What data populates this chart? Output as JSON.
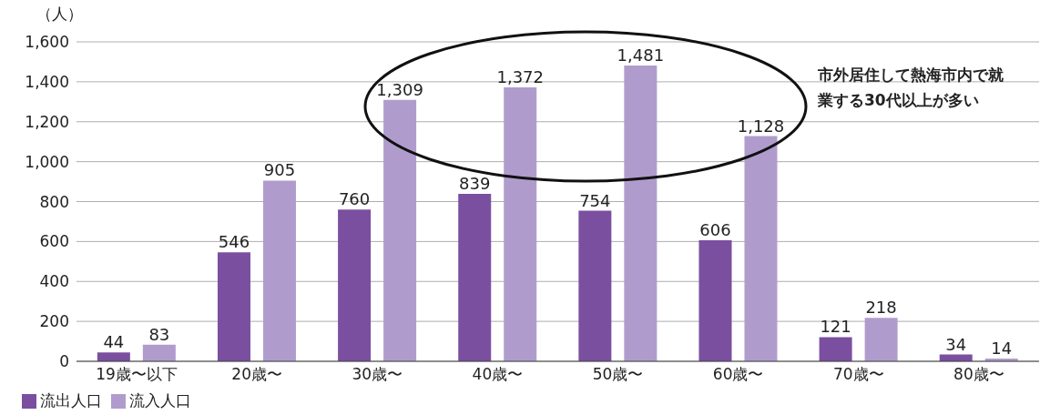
{
  "chart_data": {
    "type": "bar",
    "ylabel": "（人）",
    "categories": [
      "19歳〜以下",
      "20歳〜",
      "30歳〜",
      "40歳〜",
      "50歳〜",
      "60歳〜",
      "70歳〜",
      "80歳〜"
    ],
    "series": [
      {
        "name": "流出人口",
        "color": "#7b4fa0",
        "values": [
          44,
          546,
          760,
          839,
          754,
          606,
          121,
          34
        ],
        "value_labels": [
          "44",
          "546",
          "760",
          "839",
          "754",
          "606",
          "121",
          "34"
        ]
      },
      {
        "name": "流入人口",
        "color": "#b09ccc",
        "values": [
          83,
          905,
          1309,
          1372,
          1481,
          1128,
          218,
          14
        ],
        "value_labels": [
          "83",
          "905",
          "1,309",
          "1,372",
          "1,481",
          "1,128",
          "218",
          "14"
        ]
      }
    ],
    "ylim": [
      0,
      1600
    ],
    "yticks": [
      0,
      200,
      400,
      600,
      800,
      {
        "value": 1000,
        "label": "1,000"
      },
      {
        "value": 1200,
        "label": "1,200"
      },
      {
        "value": 1400,
        "label": "1,400"
      },
      {
        "value": 1600,
        "label": "1,600"
      }
    ],
    "grid": "y",
    "legend": "bottom left",
    "annotations": [
      "市外居住して熱海市内で就業する30代以上が多い"
    ]
  }
}
